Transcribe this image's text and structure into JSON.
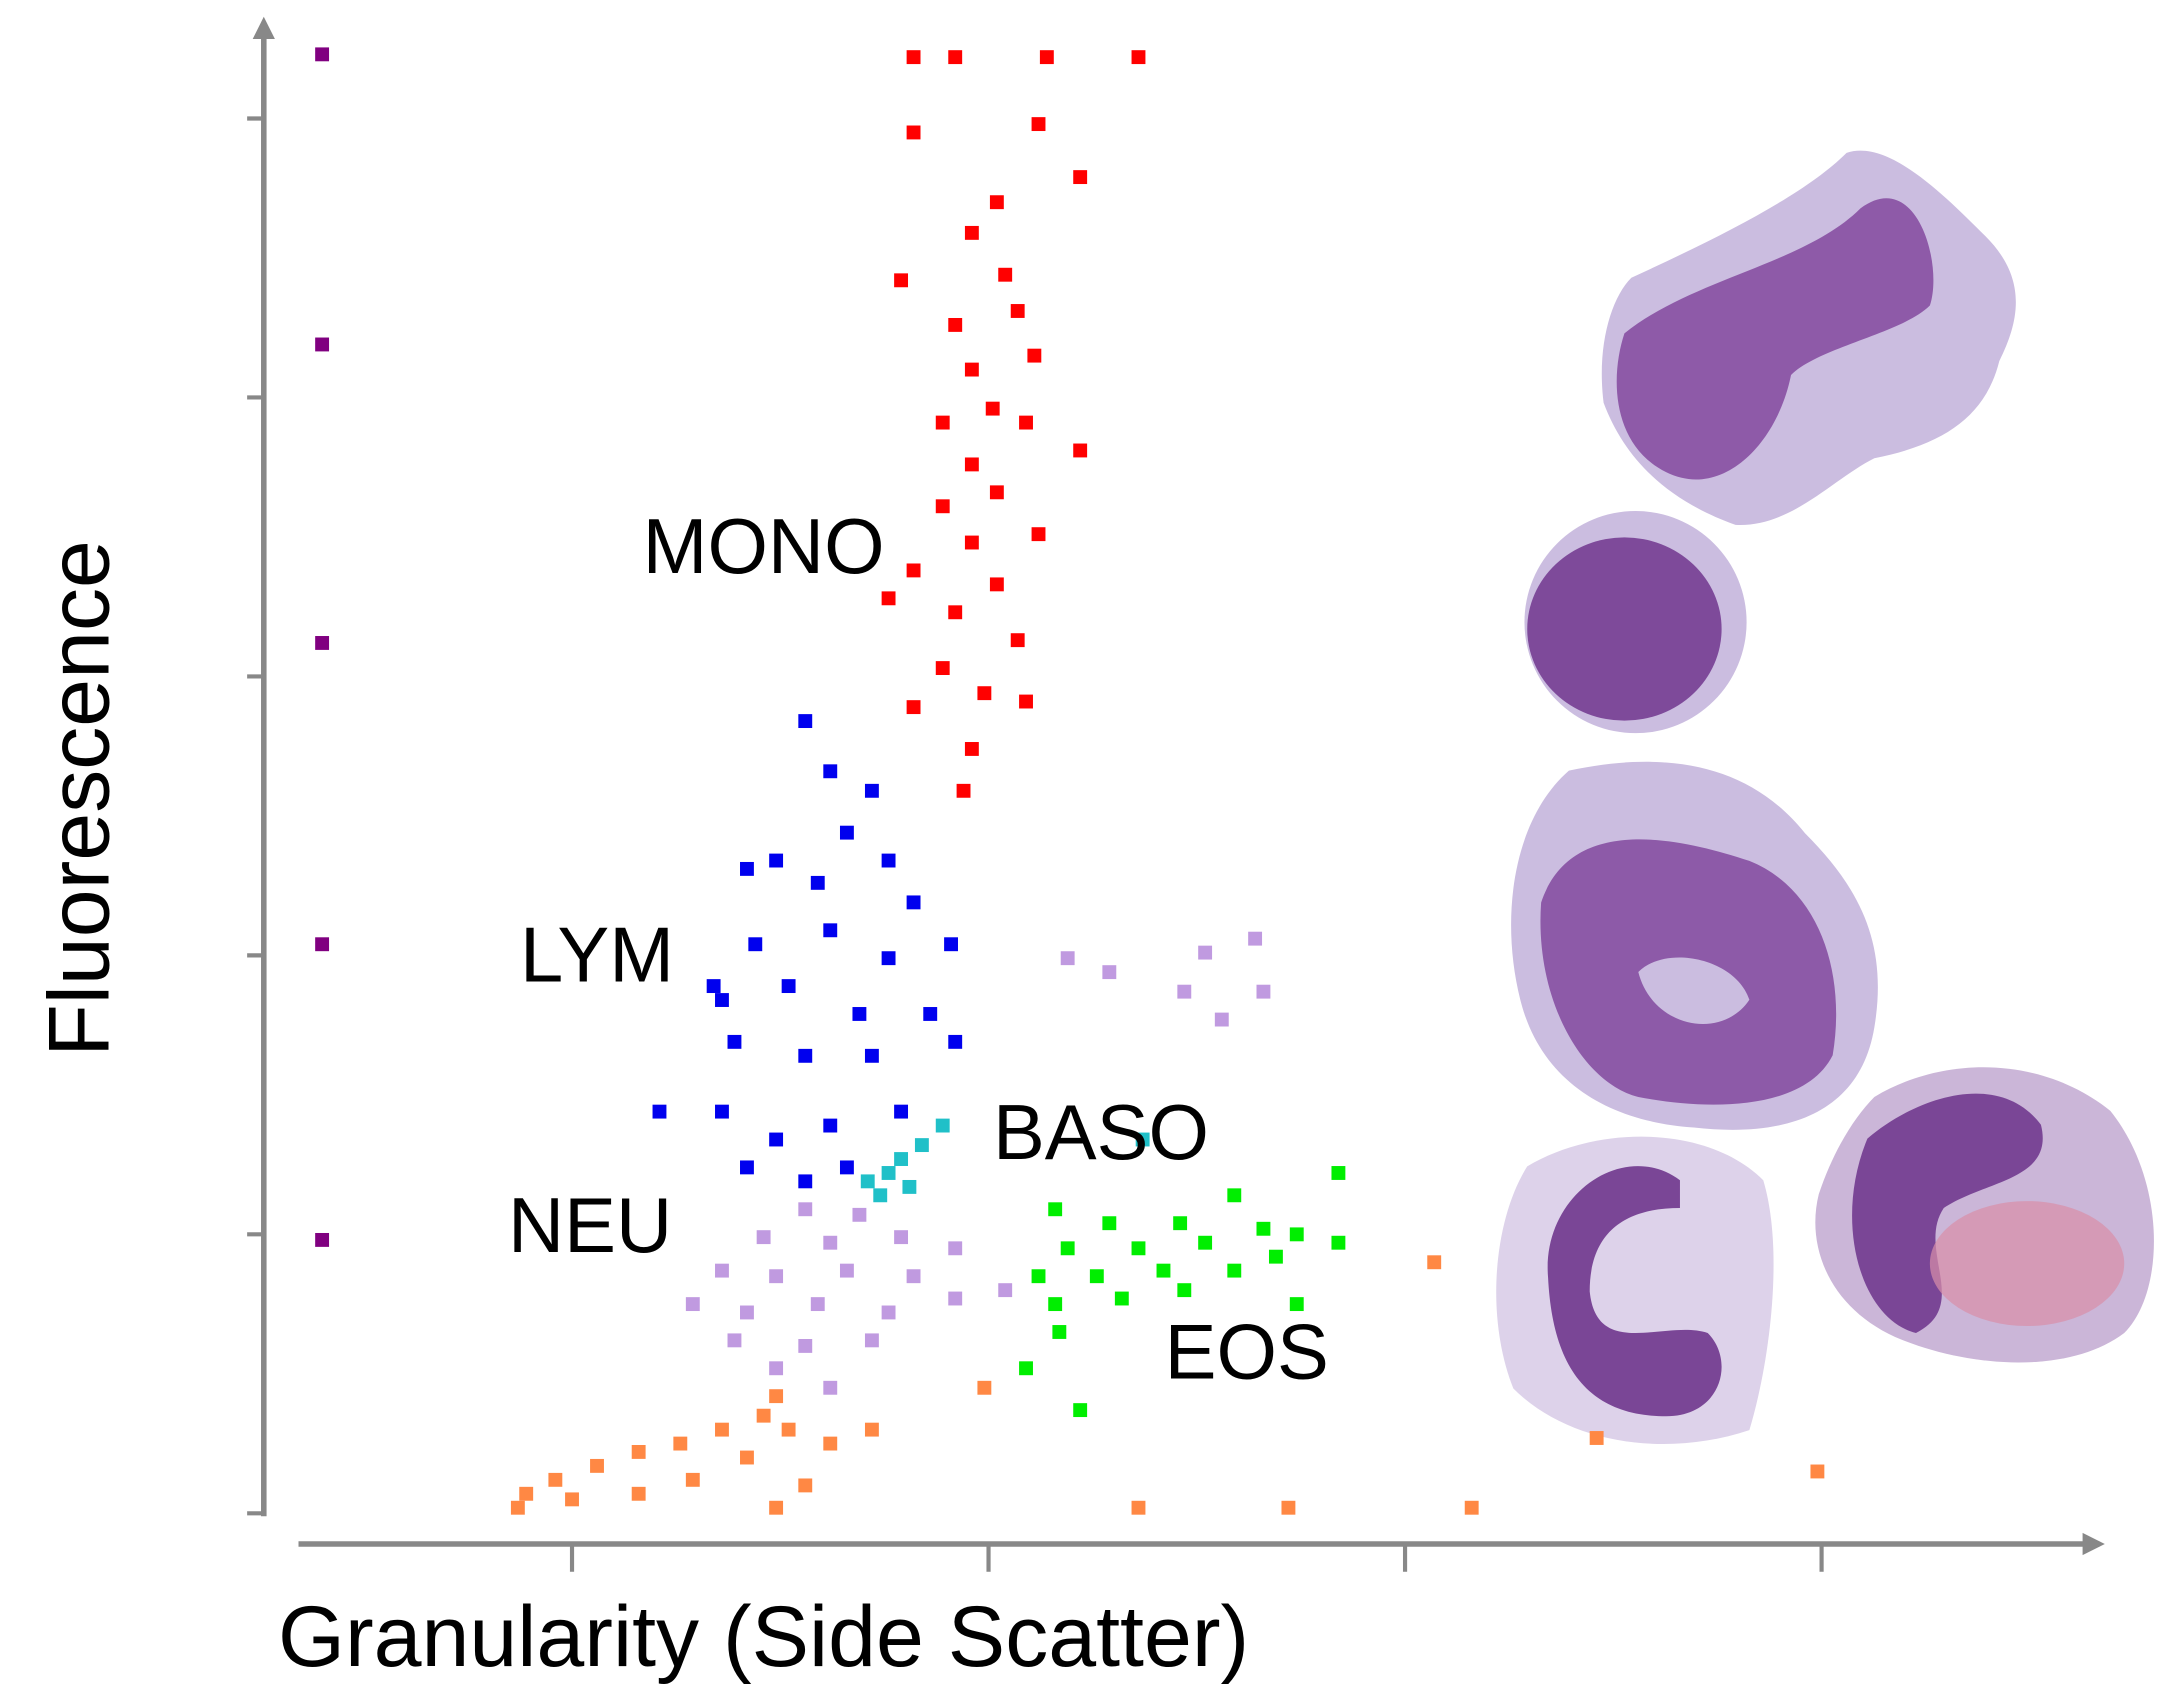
{
  "chart_data": {
    "type": "scatter",
    "x_label": "Granularity (Side Scatter)",
    "y_label": "Fluorescence",
    "xlim": [
      0.26,
      4.66
    ],
    "ylim": [
      -0.11,
      5.3
    ],
    "xticks": [
      1,
      2,
      3,
      4
    ],
    "yticks": [
      0,
      1,
      2,
      3,
      4,
      5
    ],
    "series": [
      {
        "name": "MONO",
        "color": "#ff0000",
        "x": [
          1.82,
          1.92,
          2.14,
          2.36,
          1.82,
          2.12,
          2.22,
          2.02,
          1.96,
          2.04,
          1.79,
          1.92,
          2.07,
          1.96,
          2.11,
          2.01,
          1.89,
          2.09,
          2.22,
          1.96,
          2.02,
          1.89,
          2.12,
          1.96,
          1.82,
          2.02,
          1.92,
          1.76,
          2.07,
          1.89,
          1.99,
          1.82,
          1.96,
          1.94,
          2.09
        ],
        "y": [
          5.22,
          5.22,
          5.22,
          5.22,
          4.95,
          4.98,
          4.79,
          4.7,
          4.59,
          4.44,
          4.42,
          4.26,
          4.31,
          4.1,
          4.15,
          3.96,
          3.91,
          3.91,
          3.81,
          3.76,
          3.66,
          3.61,
          3.51,
          3.48,
          3.38,
          3.33,
          3.23,
          3.28,
          3.13,
          3.03,
          2.94,
          2.89,
          2.74,
          2.59,
          2.91
        ]
      },
      {
        "name": "LYM",
        "color": "#0000ee",
        "x": [
          1.56,
          1.62,
          1.72,
          1.66,
          1.49,
          1.76,
          1.42,
          1.59,
          1.82,
          1.44,
          1.62,
          1.76,
          1.36,
          1.52,
          1.69,
          1.86,
          1.39,
          1.56,
          1.72,
          1.92,
          1.21,
          1.36,
          1.49,
          1.62,
          1.79,
          1.42,
          1.56,
          1.66,
          1.34,
          1.91
        ],
        "y": [
          2.84,
          2.66,
          2.59,
          2.44,
          2.34,
          2.34,
          2.31,
          2.26,
          2.19,
          2.04,
          2.09,
          1.99,
          1.84,
          1.89,
          1.79,
          1.79,
          1.69,
          1.64,
          1.64,
          1.69,
          1.44,
          1.44,
          1.34,
          1.39,
          1.44,
          1.24,
          1.19,
          1.24,
          1.89,
          2.04
        ]
      },
      {
        "name": "BASO",
        "color": "#20c0c8",
        "x": [
          1.89,
          1.84,
          1.79,
          1.76,
          1.71,
          1.81,
          1.74,
          2.37
        ],
        "y": [
          1.39,
          1.32,
          1.27,
          1.22,
          1.19,
          1.17,
          1.14,
          1.34
        ]
      },
      {
        "name": "NEU",
        "color": "#c09ae0",
        "x": [
          1.56,
          1.69,
          1.46,
          1.62,
          1.79,
          1.92,
          1.36,
          1.49,
          1.66,
          1.82,
          1.29,
          1.42,
          1.59,
          1.76,
          1.92,
          1.39,
          1.56,
          1.72,
          1.49,
          1.62,
          2.04,
          2.19,
          2.29,
          2.52,
          2.64,
          2.47,
          2.56,
          2.66
        ],
        "y": [
          1.09,
          1.07,
          0.99,
          0.97,
          0.99,
          0.95,
          0.87,
          0.85,
          0.87,
          0.85,
          0.75,
          0.72,
          0.75,
          0.72,
          0.77,
          0.62,
          0.6,
          0.62,
          0.52,
          0.45,
          0.8,
          1.99,
          1.94,
          2.01,
          2.06,
          1.87,
          1.77,
          1.87
        ]
      },
      {
        "name": "EOS",
        "color": "#00ee00",
        "x": [
          2.59,
          2.16,
          2.29,
          2.46,
          2.66,
          2.74,
          2.19,
          2.36,
          2.52,
          2.69,
          2.12,
          2.26,
          2.42,
          2.59,
          2.16,
          2.32,
          2.47,
          2.84,
          2.84,
          2.74,
          2.17,
          2.09,
          2.22
        ],
        "y": [
          1.14,
          1.09,
          1.04,
          1.04,
          1.02,
          1.0,
          0.95,
          0.95,
          0.97,
          0.92,
          0.85,
          0.85,
          0.87,
          0.87,
          0.75,
          0.77,
          0.8,
          1.22,
          0.97,
          0.75,
          0.65,
          0.52,
          0.37
        ]
      },
      {
        "color": "#ff8844",
        "x": [
          1.49,
          1.46,
          1.36,
          1.26,
          1.16,
          1.06,
          0.96,
          0.89,
          0.87,
          1.0,
          1.16,
          1.29,
          1.42,
          1.52,
          1.62,
          1.56,
          1.49,
          1.72,
          1.99,
          2.36,
          2.72,
          3.07,
          3.16,
          3.46,
          3.99
        ],
        "y": [
          0.42,
          0.35,
          0.3,
          0.25,
          0.22,
          0.17,
          0.12,
          0.07,
          0.02,
          0.05,
          0.07,
          0.12,
          0.2,
          0.3,
          0.25,
          0.1,
          0.02,
          0.3,
          0.45,
          0.02,
          0.02,
          0.9,
          0.02,
          0.27,
          0.15
        ]
      },
      {
        "color": "#800080",
        "x": [
          0.4,
          0.4,
          0.4,
          0.4,
          0.4
        ],
        "y": [
          5.23,
          4.19,
          3.12,
          2.04,
          0.98
        ]
      }
    ]
  }
}
